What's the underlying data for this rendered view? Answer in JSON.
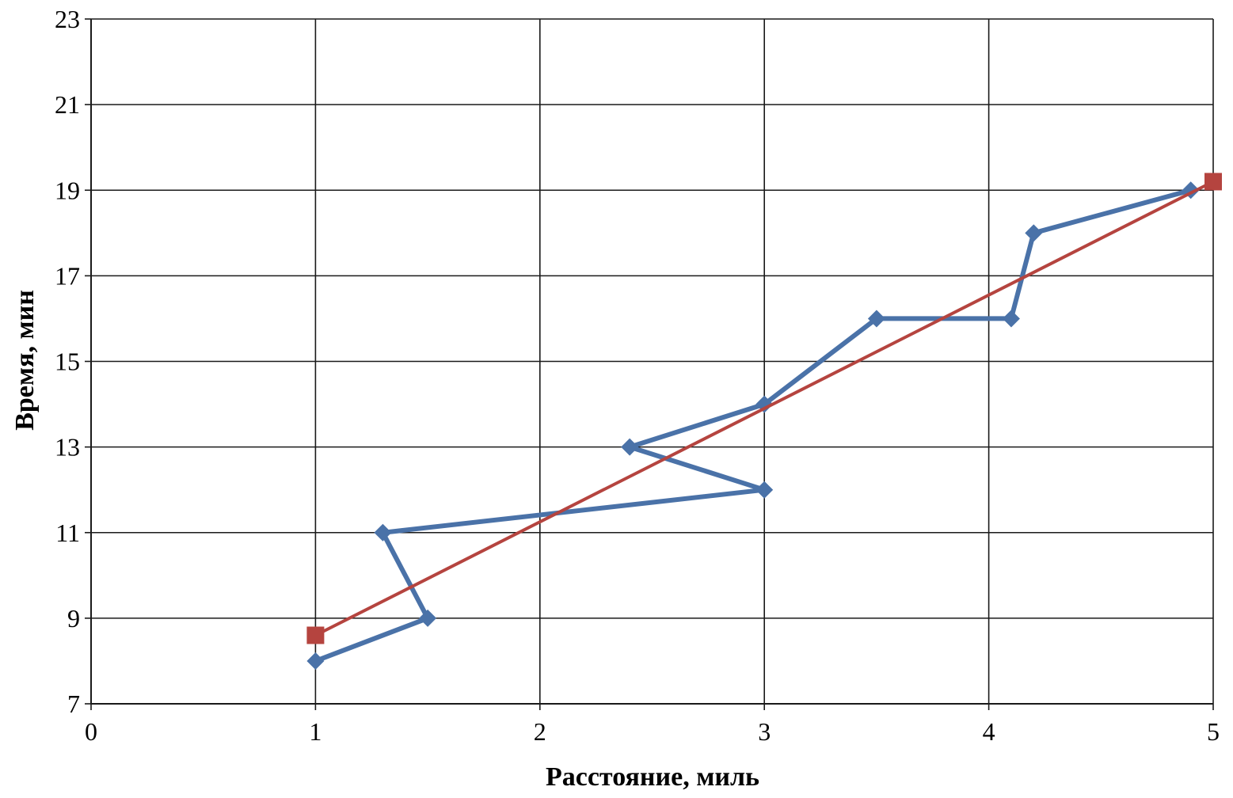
{
  "chart_data": {
    "type": "line",
    "title": "",
    "xlabel": "Расстояние, миль",
    "ylabel": "Время, мин",
    "xlim": [
      0,
      5
    ],
    "ylim": [
      7,
      23
    ],
    "x_ticks": [
      "0",
      "1",
      "2",
      "3",
      "4",
      "5"
    ],
    "y_ticks": [
      "7",
      "9",
      "11",
      "13",
      "15",
      "17",
      "19",
      "21",
      "23"
    ],
    "grid": true,
    "legend": "none",
    "series": [
      {
        "color": "#4a72a8",
        "marker": "diamond",
        "points": [
          {
            "x": 1.0,
            "y": 8
          },
          {
            "x": 1.5,
            "y": 9
          },
          {
            "x": 1.3,
            "y": 11
          },
          {
            "x": 3.0,
            "y": 12
          },
          {
            "x": 2.4,
            "y": 13
          },
          {
            "x": 3.0,
            "y": 14
          },
          {
            "x": 3.5,
            "y": 16
          },
          {
            "x": 4.1,
            "y": 16
          },
          {
            "x": 4.2,
            "y": 18
          },
          {
            "x": 4.9,
            "y": 19
          }
        ]
      },
      {
        "color": "#b5443f",
        "marker": "square",
        "points": [
          {
            "x": 1.0,
            "y": 8.6
          },
          {
            "x": 5.0,
            "y": 19.2
          }
        ]
      }
    ]
  }
}
